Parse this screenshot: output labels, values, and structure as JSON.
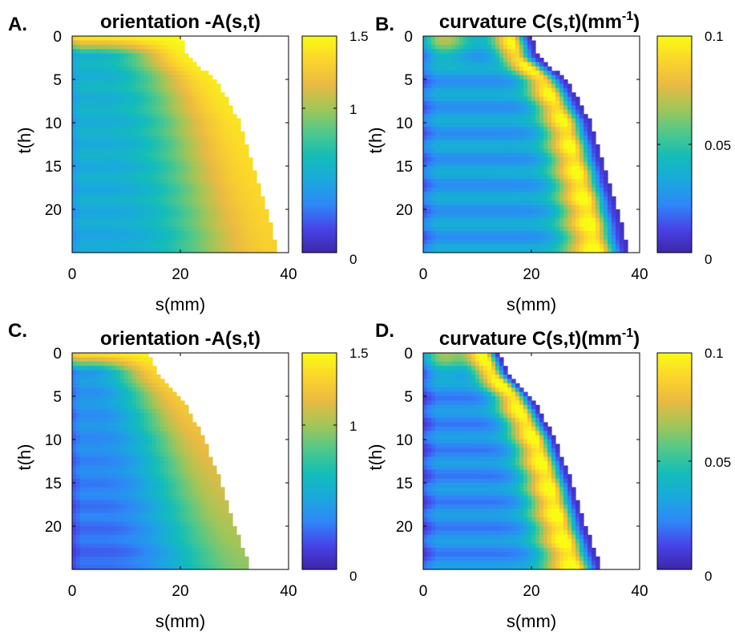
{
  "colors": {
    "colormap": [
      "#3e26a8",
      "#4744e8",
      "#2e87f7",
      "#1aa9dd",
      "#13bdb8",
      "#50c88a",
      "#a4c557",
      "#eaba42",
      "#fbd52b",
      "#f9fb15"
    ],
    "outside": "#ffffff",
    "axis": "#000000"
  },
  "chart_data": [
    {
      "id": "A",
      "type": "heatmap",
      "panel_label": "A.",
      "title": "orientation  -A(s,t)",
      "title_parts": [],
      "xlabel": "s(mm)",
      "ylabel": "t(h)",
      "xlim": [
        0,
        40
      ],
      "ylim": [
        0,
        25
      ],
      "y_reversed": true,
      "xticks": [
        "0",
        "20",
        "40"
      ],
      "yticks": [
        "0",
        "5",
        "10",
        "15",
        "20"
      ],
      "clim": [
        0,
        1.5
      ],
      "colorbar_ticks": [
        "1.5",
        "1",
        "0"
      ],
      "boundary_t": [
        0,
        2.5,
        5,
        10,
        15,
        20,
        25
      ],
      "boundary_s": [
        20.0,
        21.5,
        26.5,
        31.0,
        33.5,
        36.0,
        38.0
      ],
      "field": {
        "kind": "orientation",
        "base_t0": 0.6,
        "base_slope": -0.004,
        "edge_value_t0": 1.45,
        "edge_value_t25": 1.3,
        "top_value": 1.5
      }
    },
    {
      "id": "B",
      "type": "heatmap",
      "panel_label": "B.",
      "title": "curvature C(s,t)(mm",
      "title_parts": [
        "curvature C(s,t)(mm",
        "-1",
        ")"
      ],
      "xlabel": "",
      "ylabel": "t(h)",
      "xlim": [
        0,
        40
      ],
      "ylim": [
        0,
        25
      ],
      "y_reversed": true,
      "xticks": [
        "0",
        "20",
        "40"
      ],
      "yticks": [
        "0",
        "5",
        "10",
        "15",
        "20"
      ],
      "clim": [
        0,
        0.1
      ],
      "colorbar_ticks": [
        "0.1",
        "0.05",
        "0"
      ],
      "boundary_t": [
        0,
        2.5,
        5,
        10,
        15,
        20,
        25
      ],
      "boundary_s": [
        20.0,
        21.5,
        26.5,
        31.0,
        33.5,
        36.0,
        38.0
      ],
      "field": {
        "kind": "curvature",
        "band_peak_t0": 0.095,
        "band_peak_t25": 0.1,
        "base_value": 0.03,
        "edge_value": 0.005,
        "band_offset_mm": 4
      }
    },
    {
      "id": "C",
      "type": "heatmap",
      "panel_label": "C.",
      "title": "orientation  -A(s,t)",
      "title_parts": [],
      "xlabel": "s(mm)",
      "ylabel": "t(h)",
      "xlim": [
        0,
        40
      ],
      "ylim": [
        0,
        25
      ],
      "y_reversed": true,
      "xticks": [
        "0",
        "20",
        "40"
      ],
      "yticks": [
        "0",
        "5",
        "10",
        "15",
        "20"
      ],
      "clim": [
        0,
        1.5
      ],
      "colorbar_ticks": [
        "1.5",
        "1",
        "0"
      ],
      "boundary_t": [
        0,
        2.5,
        5,
        10,
        15,
        20,
        25
      ],
      "boundary_s": [
        14.0,
        16.0,
        20.0,
        24.5,
        27.5,
        30.0,
        33.0
      ],
      "field": {
        "kind": "orientation",
        "base_t0": 0.45,
        "base_slope": -0.008,
        "edge_value_t0": 1.35,
        "edge_value_t25": 0.95,
        "top_value": 1.45
      }
    },
    {
      "id": "D",
      "type": "heatmap",
      "panel_label": "D.",
      "title": "curvature C(s,t)(mm",
      "title_parts": [
        "curvature C(s,t)(mm",
        "-1",
        ")"
      ],
      "xlabel": "s(mm)",
      "ylabel": "t(h)",
      "xlim": [
        0,
        40
      ],
      "ylim": [
        0,
        25
      ],
      "y_reversed": true,
      "xticks": [
        "0",
        "20",
        "40"
      ],
      "yticks": [
        "0",
        "5",
        "10",
        "15",
        "20"
      ],
      "clim": [
        0,
        0.1
      ],
      "colorbar_ticks": [
        "0.1",
        "0.05",
        "0"
      ],
      "boundary_t": [
        0,
        2.5,
        5,
        10,
        15,
        20,
        25
      ],
      "boundary_s": [
        14.0,
        16.0,
        20.0,
        24.5,
        27.5,
        30.0,
        33.0
      ],
      "field": {
        "kind": "curvature",
        "band_peak_t0": 0.1,
        "band_peak_t25": 0.1,
        "base_value": 0.025,
        "edge_value": 0.005,
        "band_offset_mm": 3
      }
    }
  ]
}
